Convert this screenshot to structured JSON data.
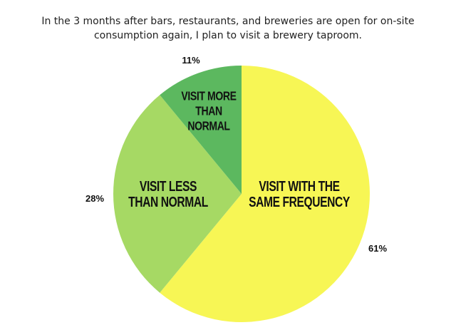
{
  "title_lines": [
    "In the 3 months after bars, restaurants, and breweries are open for on-site",
    "consumption again, I plan to visit a brewery taproom."
  ],
  "chart_data": {
    "type": "pie",
    "title": "In the 3 months after bars, restaurants, and breweries are open for on-site consumption again, I plan to visit a brewery taproom.",
    "legend": "none",
    "slices": [
      {
        "label": [
          "VISIT WITH THE",
          "SAME FREQUENCY"
        ],
        "value": 61,
        "value_label": "61%",
        "color": "#f7f655"
      },
      {
        "label": [
          "VISIT LESS",
          "THAN NORMAL"
        ],
        "value": 28,
        "value_label": "28%",
        "color": "#a6d964"
      },
      {
        "label": [
          "VISIT MORE",
          "THAN",
          "NORMAL"
        ],
        "value": 11,
        "value_label": "11%",
        "color": "#5cb85f"
      }
    ]
  }
}
